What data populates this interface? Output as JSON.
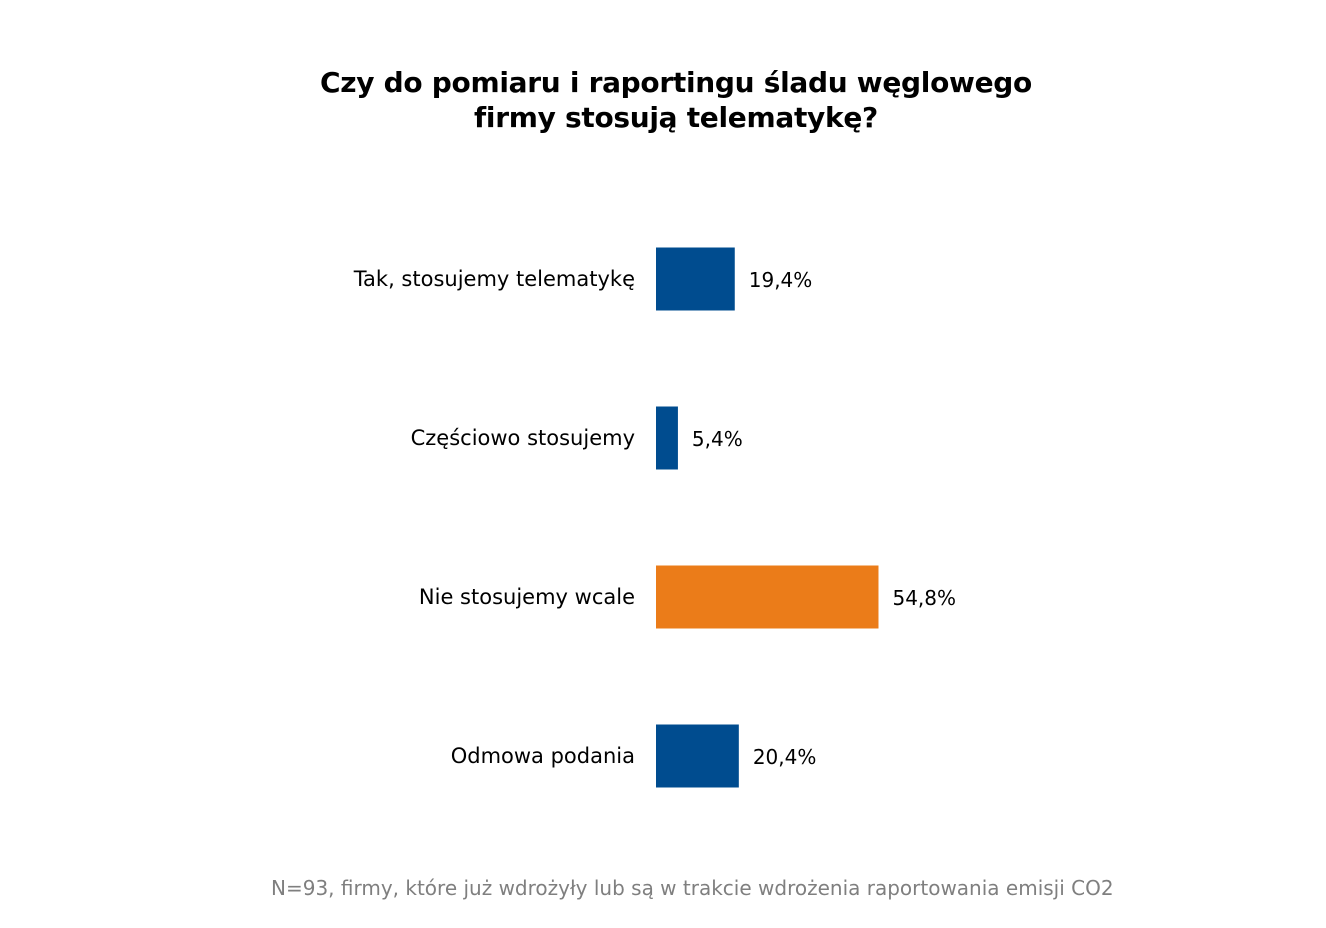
{
  "title_lines": [
    "Czy do pomiaru i raportingu śladu węglowego",
    "firmy stosują telematykę?"
  ],
  "footnote": "N=93, firmy, które już wdrożyły lub są w trakcie wdrożenia raportowania emisji CO2",
  "colors": {
    "default_bar": "#004c8f",
    "highlight_bar": "#eb7c19"
  },
  "chart_data": {
    "type": "bar",
    "orientation": "horizontal",
    "title": "Czy do pomiaru i raportingu śladu węglowego firmy stosują telematykę?",
    "categories": [
      "Tak, stosujemy telematykę",
      "Częściowo stosujemy",
      "Nie stosujemy wcale",
      "Odmowa podania"
    ],
    "values": [
      19.4,
      5.4,
      54.8,
      20.4
    ],
    "value_labels": [
      "19,4%",
      "5,4%",
      "54,8%",
      "20,4%"
    ],
    "unit": "%",
    "highlighted_index": 2,
    "xlim": [
      0,
      100
    ],
    "grid": false,
    "legend": "none"
  }
}
